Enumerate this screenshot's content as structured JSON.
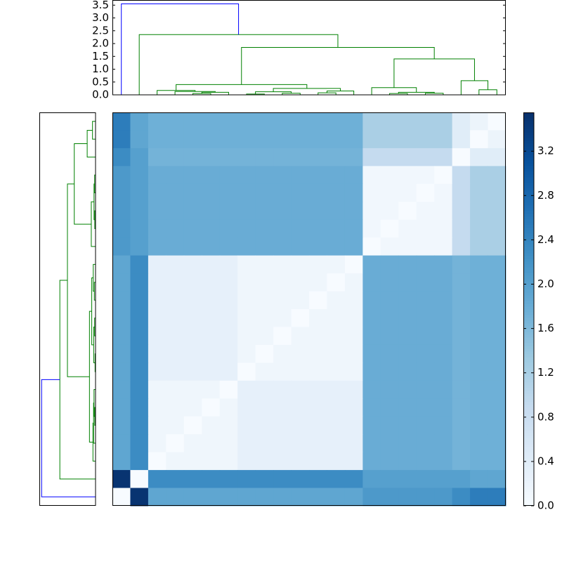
{
  "chart_data": {
    "type": "clustermap",
    "heatmap": {
      "colormap": [
        "#f7fbff",
        "#deebf7",
        "#c6dbef",
        "#9ecae1",
        "#6baed6",
        "#4292c6",
        "#2171b5",
        "#08519c",
        "#08306b"
      ],
      "clim": [
        0,
        3.55
      ],
      "z": [
        [
          2.5,
          1.9,
          1.75,
          1.75,
          1.75,
          1.75,
          1.75,
          1.75,
          1.75,
          1.75,
          1.75,
          1.75,
          1.75,
          1.75,
          1.2,
          1.2,
          1.2,
          1.2,
          1.2,
          0.4,
          0.2,
          0
        ],
        [
          2.5,
          1.9,
          1.75,
          1.75,
          1.75,
          1.75,
          1.75,
          1.75,
          1.75,
          1.75,
          1.75,
          1.75,
          1.75,
          1.75,
          1.2,
          1.2,
          1.2,
          1.2,
          1.2,
          0.4,
          0,
          0.2
        ],
        [
          2.3,
          2.0,
          1.7,
          1.7,
          1.7,
          1.7,
          1.7,
          1.7,
          1.7,
          1.7,
          1.7,
          1.7,
          1.7,
          1.7,
          0.9,
          0.9,
          0.9,
          0.9,
          0.9,
          0,
          0.4,
          0.4
        ],
        [
          2.1,
          2.0,
          1.8,
          1.8,
          1.8,
          1.8,
          1.8,
          1.8,
          1.8,
          1.8,
          1.8,
          1.8,
          1.8,
          1.8,
          0.1,
          0.1,
          0.1,
          0.1,
          0,
          0.9,
          1.2,
          1.2
        ],
        [
          2.1,
          2.0,
          1.8,
          1.8,
          1.8,
          1.8,
          1.8,
          1.8,
          1.8,
          1.8,
          1.8,
          1.8,
          1.8,
          1.8,
          0.1,
          0.1,
          0.1,
          0,
          0.1,
          0.9,
          1.2,
          1.2
        ],
        [
          2.1,
          2.0,
          1.8,
          1.8,
          1.8,
          1.8,
          1.8,
          1.8,
          1.8,
          1.8,
          1.8,
          1.8,
          1.8,
          1.8,
          0.1,
          0.1,
          0,
          0.1,
          0.1,
          0.9,
          1.2,
          1.2
        ],
        [
          2.1,
          2.0,
          1.8,
          1.8,
          1.8,
          1.8,
          1.8,
          1.8,
          1.8,
          1.8,
          1.8,
          1.8,
          1.8,
          1.8,
          0.1,
          0,
          0.1,
          0.1,
          0.1,
          0.9,
          1.2,
          1.2
        ],
        [
          2.1,
          2.0,
          1.8,
          1.8,
          1.8,
          1.8,
          1.8,
          1.8,
          1.8,
          1.8,
          1.8,
          1.8,
          1.8,
          1.8,
          0,
          0.1,
          0.1,
          0.1,
          0.1,
          0.9,
          1.2,
          1.2
        ],
        [
          1.9,
          2.3,
          0.3,
          0.3,
          0.3,
          0.3,
          0.3,
          0.15,
          0.15,
          0.15,
          0.15,
          0.15,
          0.15,
          0,
          1.8,
          1.8,
          1.8,
          1.8,
          1.8,
          1.7,
          1.75,
          1.75
        ],
        [
          1.9,
          2.3,
          0.3,
          0.3,
          0.3,
          0.3,
          0.3,
          0.15,
          0.15,
          0.15,
          0.15,
          0.15,
          0,
          0.15,
          1.8,
          1.8,
          1.8,
          1.8,
          1.8,
          1.7,
          1.75,
          1.75
        ],
        [
          1.9,
          2.3,
          0.3,
          0.3,
          0.3,
          0.3,
          0.3,
          0.15,
          0.15,
          0.15,
          0.15,
          0,
          0.15,
          0.15,
          1.8,
          1.8,
          1.8,
          1.8,
          1.8,
          1.7,
          1.75,
          1.75
        ],
        [
          1.9,
          2.3,
          0.3,
          0.3,
          0.3,
          0.3,
          0.3,
          0.15,
          0.15,
          0.15,
          0,
          0.15,
          0.15,
          0.15,
          1.8,
          1.8,
          1.8,
          1.8,
          1.8,
          1.7,
          1.75,
          1.75
        ],
        [
          1.9,
          2.3,
          0.3,
          0.3,
          0.3,
          0.3,
          0.3,
          0.15,
          0.15,
          0,
          0.15,
          0.15,
          0.15,
          0.15,
          1.8,
          1.8,
          1.8,
          1.8,
          1.8,
          1.7,
          1.75,
          1.75
        ],
        [
          1.9,
          2.3,
          0.3,
          0.3,
          0.3,
          0.3,
          0.3,
          0.15,
          0,
          0.15,
          0.15,
          0.15,
          0.15,
          0.15,
          1.8,
          1.8,
          1.8,
          1.8,
          1.8,
          1.7,
          1.75,
          1.75
        ],
        [
          1.9,
          2.3,
          0.3,
          0.3,
          0.3,
          0.3,
          0.3,
          0,
          0.15,
          0.15,
          0.15,
          0.15,
          0.15,
          0.15,
          1.8,
          1.8,
          1.8,
          1.8,
          1.8,
          1.7,
          1.75,
          1.75
        ],
        [
          1.9,
          2.3,
          0.15,
          0.15,
          0.15,
          0.15,
          0,
          0.3,
          0.3,
          0.3,
          0.3,
          0.3,
          0.3,
          0.3,
          1.8,
          1.8,
          1.8,
          1.8,
          1.8,
          1.7,
          1.75,
          1.75
        ],
        [
          1.9,
          2.3,
          0.15,
          0.15,
          0.15,
          0,
          0.15,
          0.3,
          0.3,
          0.3,
          0.3,
          0.3,
          0.3,
          0.3,
          1.8,
          1.8,
          1.8,
          1.8,
          1.8,
          1.7,
          1.75,
          1.75
        ],
        [
          1.9,
          2.3,
          0.15,
          0.15,
          0,
          0.15,
          0.15,
          0.3,
          0.3,
          0.3,
          0.3,
          0.3,
          0.3,
          0.3,
          1.8,
          1.8,
          1.8,
          1.8,
          1.8,
          1.7,
          1.75,
          1.75
        ],
        [
          1.9,
          2.3,
          0.15,
          0,
          0.15,
          0.15,
          0.15,
          0.3,
          0.3,
          0.3,
          0.3,
          0.3,
          0.3,
          0.3,
          1.8,
          1.8,
          1.8,
          1.8,
          1.8,
          1.7,
          1.75,
          1.75
        ],
        [
          1.9,
          2.3,
          0,
          0.15,
          0.15,
          0.15,
          0.15,
          0.3,
          0.3,
          0.3,
          0.3,
          0.3,
          0.3,
          0.3,
          1.8,
          1.8,
          1.8,
          1.8,
          1.8,
          1.7,
          1.75,
          1.75
        ],
        [
          3.5,
          0,
          2.3,
          2.3,
          2.3,
          2.3,
          2.3,
          2.3,
          2.3,
          2.3,
          2.3,
          2.3,
          2.3,
          2.3,
          2.0,
          2.0,
          2.0,
          2.0,
          2.0,
          2.0,
          1.9,
          1.9
        ],
        [
          0,
          3.5,
          1.9,
          1.9,
          1.9,
          1.9,
          1.9,
          1.9,
          1.9,
          1.9,
          1.9,
          1.9,
          1.9,
          1.9,
          2.1,
          2.1,
          2.1,
          2.1,
          2.1,
          2.3,
          2.5,
          2.5
        ]
      ]
    },
    "colorbar": {
      "ticks": [
        {
          "value": 0,
          "label": "0.0"
        },
        0.4,
        0.8,
        1.2,
        1.6,
        {
          "value": 2,
          "label": "2.0"
        },
        2.4,
        2.8,
        3.2
      ]
    },
    "dendrogram": {
      "ylim": [
        0,
        3.7
      ],
      "yticks": [
        {
          "value": 0,
          "label": "0.0"
        },
        0.5,
        {
          "value": 1,
          "label": "1.0"
        },
        1.5,
        {
          "value": 2,
          "label": "2.0"
        },
        2.5,
        {
          "value": 3,
          "label": "3.0"
        },
        3.5
      ],
      "icoord": [
        [
          45,
          45,
          55,
          55
        ],
        [
          50,
          50,
          65,
          65
        ],
        [
          35,
          35,
          57.5,
          57.5
        ],
        [
          25,
          25,
          46.25,
          46.25
        ],
        [
          75,
          75,
          85,
          85
        ],
        [
          95,
          95,
          105,
          105
        ],
        [
          115,
          115,
          125,
          125
        ],
        [
          120,
          120,
          135,
          135
        ],
        [
          80,
          80,
          100,
          100
        ],
        [
          90,
          90,
          127.5,
          127.5
        ],
        [
          35.625,
          35.625,
          108.75,
          108.75
        ],
        [
          155,
          155,
          165,
          165
        ],
        [
          175,
          175,
          185,
          185
        ],
        [
          160,
          160,
          180,
          180
        ],
        [
          145,
          145,
          170,
          170
        ],
        [
          205,
          205,
          215,
          215
        ],
        [
          195,
          195,
          210,
          210
        ],
        [
          157.5,
          157.5,
          202.5,
          202.5
        ],
        [
          72.1875,
          72.1875,
          180,
          180
        ],
        [
          15,
          15,
          126.09375,
          126.09375
        ],
        [
          5,
          5,
          70.546875,
          70.546875
        ]
      ],
      "dcoord": [
        [
          0,
          0.05,
          0.05,
          0
        ],
        [
          0.05,
          0.1,
          0.1,
          0
        ],
        [
          0,
          0.13,
          0.13,
          0.1
        ],
        [
          0,
          0.17,
          0.17,
          0.13
        ],
        [
          0,
          0.03,
          0.03,
          0
        ],
        [
          0,
          0.06,
          0.06,
          0
        ],
        [
          0,
          0.08,
          0.08,
          0
        ],
        [
          0.08,
          0.15,
          0.15,
          0
        ],
        [
          0.03,
          0.12,
          0.12,
          0.06
        ],
        [
          0.12,
          0.25,
          0.25,
          0.15
        ],
        [
          0.17,
          0.4,
          0.4,
          0.25
        ],
        [
          0,
          0.05,
          0.05,
          0
        ],
        [
          0,
          0.06,
          0.06,
          0
        ],
        [
          0.05,
          0.1,
          0.1,
          0.06
        ],
        [
          0,
          0.28,
          0.28,
          0.1
        ],
        [
          0,
          0.2,
          0.2,
          0
        ],
        [
          0,
          0.55,
          0.55,
          0.2
        ],
        [
          0.28,
          1.4,
          1.4,
          0.55
        ],
        [
          0.4,
          1.85,
          1.85,
          1.4
        ],
        [
          0,
          2.35,
          2.35,
          1.85
        ],
        [
          0,
          3.55,
          3.55,
          2.35
        ]
      ],
      "colors": [
        "#008000",
        "#008000",
        "#008000",
        "#008000",
        "#008000",
        "#008000",
        "#008000",
        "#008000",
        "#008000",
        "#008000",
        "#008000",
        "#008000",
        "#008000",
        "#008000",
        "#008000",
        "#008000",
        "#008000",
        "#008000",
        "#008000",
        "#008000",
        "#0000ff"
      ]
    }
  }
}
